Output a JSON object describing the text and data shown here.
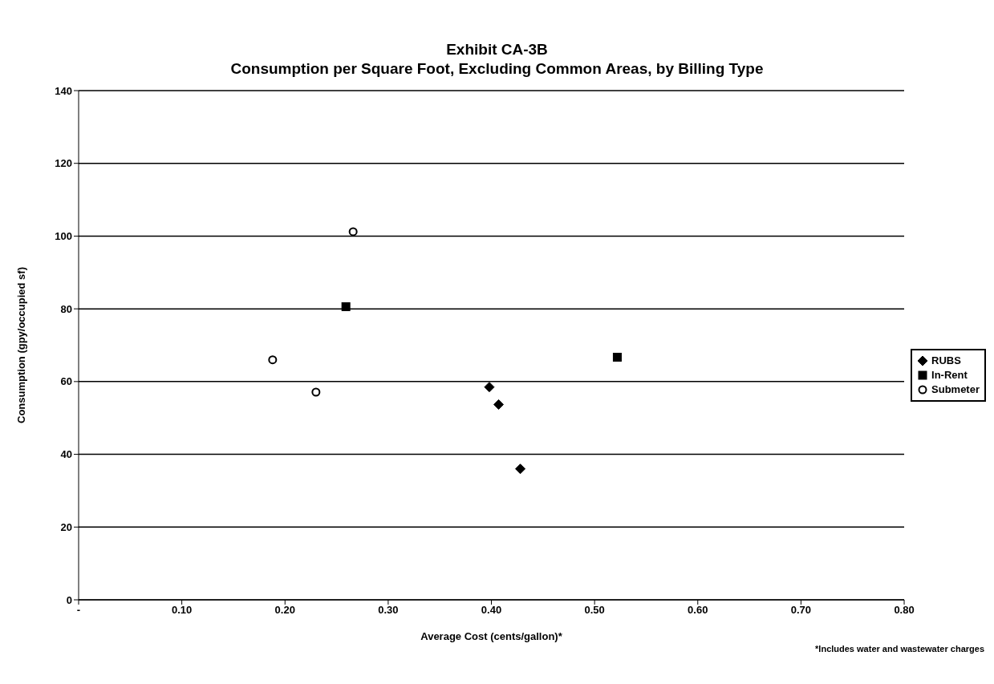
{
  "chart_data": {
    "type": "scatter",
    "title": "Exhibit CA-3B",
    "subtitle": "Consumption per Square Foot, Excluding Common Areas, by Billing Type",
    "xlabel": "Average Cost (cents/gallon)*",
    "ylabel": "Consumption (gpy/occupied sf)",
    "xlim": [
      0,
      0.8
    ],
    "xticks": [
      {
        "value": 0,
        "label": "-"
      },
      {
        "value": 0.1,
        "label": "0.10"
      },
      {
        "value": 0.2,
        "label": "0.20"
      },
      {
        "value": 0.3,
        "label": "0.30"
      },
      {
        "value": 0.4,
        "label": "0.40"
      },
      {
        "value": 0.5,
        "label": "0.50"
      },
      {
        "value": 0.6,
        "label": "0.60"
      },
      {
        "value": 0.7,
        "label": "0.70"
      },
      {
        "value": 0.8,
        "label": "0.80"
      }
    ],
    "ylim": [
      0,
      140
    ],
    "yticks": [
      0,
      20,
      40,
      60,
      80,
      100,
      120,
      140
    ],
    "grid": "y",
    "legend": "right",
    "series": [
      {
        "name": "RUBS",
        "color": "#000000",
        "marker": "diamond",
        "x": [
          0.398,
          0.407,
          0.428
        ],
        "values": [
          58.5,
          53.7,
          36
        ]
      },
      {
        "name": "In-Rent",
        "color": "#000000",
        "marker": "square",
        "x": [
          0.259,
          0.522
        ],
        "values": [
          80.6,
          66.7
        ]
      },
      {
        "name": "Submeter",
        "color": "#000000",
        "marker": "circle",
        "x": [
          0.188,
          0.23,
          0.266
        ],
        "values": [
          66,
          57.1,
          101.2
        ]
      }
    ],
    "annotations": [
      "*Includes water and wastewater charges"
    ]
  }
}
